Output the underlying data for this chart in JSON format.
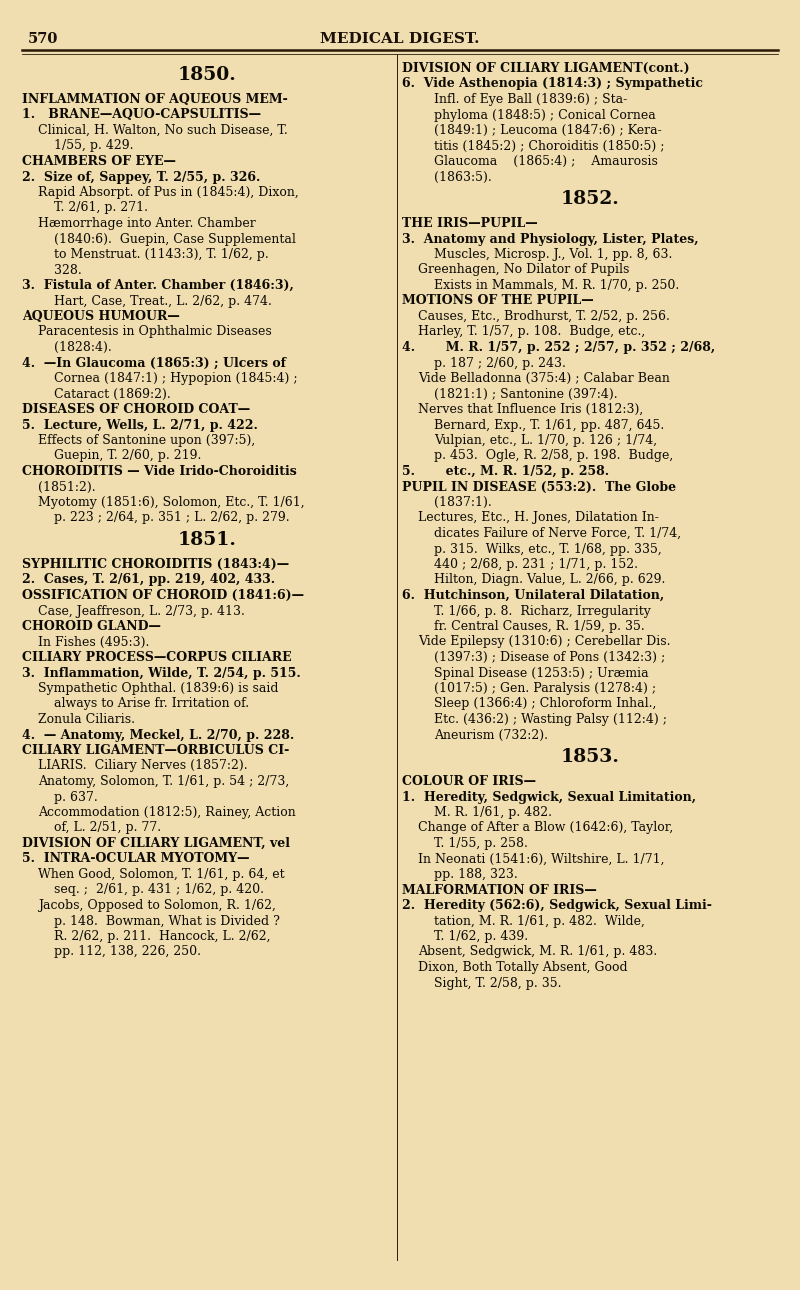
{
  "bg_color": "#f0deb0",
  "page_number": "570",
  "header_title": "MEDICAL DIGEST.",
  "figsize": [
    8.0,
    12.9
  ],
  "dpi": 100,
  "left_lines": [
    {
      "indent": 0,
      "bold": true,
      "center": true,
      "text": "1850."
    },
    {
      "indent": 0,
      "bold": true,
      "center": false,
      "text": "INFLAMMATION OF AQUEOUS MEM-"
    },
    {
      "indent": 0,
      "bold": true,
      "center": false,
      "text": "1.   BRANE—AQUO-CAPSULITIS—"
    },
    {
      "indent": 1,
      "bold": false,
      "center": false,
      "text": "Clinical, H. Walton, No such Disease, T."
    },
    {
      "indent": 2,
      "bold": false,
      "center": false,
      "text": "1/55, p. 429."
    },
    {
      "indent": 0,
      "bold": true,
      "center": false,
      "text": "CHAMBERS OF EYE—"
    },
    {
      "indent": 0,
      "bold": true,
      "center": false,
      "text": "2.  Size of, Sappey, T. 2/55, p. 326."
    },
    {
      "indent": 1,
      "bold": false,
      "center": false,
      "text": "Rapid Absorpt. of Pus in (1845:4), Dixon,"
    },
    {
      "indent": 2,
      "bold": false,
      "center": false,
      "text": "T. 2/61, p. 271."
    },
    {
      "indent": 1,
      "bold": false,
      "center": false,
      "text": "Hæmorrhage into Anter. Chamber"
    },
    {
      "indent": 2,
      "bold": false,
      "center": false,
      "text": "(1840:6).  Guepin, Case Supplemental"
    },
    {
      "indent": 2,
      "bold": false,
      "center": false,
      "text": "to Menstruat. (1143:3), T. 1/62, p."
    },
    {
      "indent": 2,
      "bold": false,
      "center": false,
      "text": "328."
    },
    {
      "indent": 0,
      "bold": true,
      "center": false,
      "text": "3.  Fistula of Anter. Chamber (1846:3),"
    },
    {
      "indent": 2,
      "bold": false,
      "center": false,
      "text": "Hart, Case, Treat., L. 2/62, p. 474."
    },
    {
      "indent": 0,
      "bold": true,
      "center": false,
      "text": "AQUEOUS HUMOUR—"
    },
    {
      "indent": 1,
      "bold": false,
      "center": false,
      "text": "Paracentesis in Ophthalmic Diseases"
    },
    {
      "indent": 2,
      "bold": false,
      "center": false,
      "text": "(1828:4)."
    },
    {
      "indent": 0,
      "bold": true,
      "center": false,
      "text": "4.  —In Glaucoma (1865:3) ; Ulcers of"
    },
    {
      "indent": 2,
      "bold": false,
      "center": false,
      "text": "Cornea (1847:1) ; Hypopion (1845:4) ;"
    },
    {
      "indent": 2,
      "bold": false,
      "center": false,
      "text": "Cataract (1869:2)."
    },
    {
      "indent": 0,
      "bold": true,
      "center": false,
      "text": "DISEASES OF CHOROID COAT—"
    },
    {
      "indent": 0,
      "bold": true,
      "center": false,
      "text": "5.  Lecture, Wells, L. 2/71, p. 422."
    },
    {
      "indent": 1,
      "bold": false,
      "center": false,
      "text": "Effects of Santonine upon (397:5),"
    },
    {
      "indent": 2,
      "bold": false,
      "center": false,
      "text": "Guepin, T. 2/60, p. 219."
    },
    {
      "indent": 0,
      "bold": true,
      "center": false,
      "text": "CHOROIDITIS — Vide Irido-Choroiditis"
    },
    {
      "indent": 1,
      "bold": false,
      "center": false,
      "text": "(1851:2)."
    },
    {
      "indent": 1,
      "bold": false,
      "center": false,
      "text": "Myotomy (1851:6), Solomon, Etc., T. 1/61,"
    },
    {
      "indent": 2,
      "bold": false,
      "center": false,
      "text": "p. 223 ; 2/64, p. 351 ; L. 2/62, p. 279."
    },
    {
      "indent": 0,
      "bold": true,
      "center": true,
      "text": "1851."
    },
    {
      "indent": 0,
      "bold": true,
      "center": false,
      "text": "SYPHILITIC CHOROIDITIS (1843:4)—"
    },
    {
      "indent": 0,
      "bold": true,
      "center": false,
      "text": "2.  Cases, T. 2/61, pp. 219, 402, 433."
    },
    {
      "indent": 0,
      "bold": true,
      "center": false,
      "text": "OSSIFICATION OF CHOROID (1841:6)—"
    },
    {
      "indent": 1,
      "bold": false,
      "center": false,
      "text": "Case, Jeaffreson, L. 2/73, p. 413."
    },
    {
      "indent": 0,
      "bold": true,
      "center": false,
      "text": "CHOROID GLAND—"
    },
    {
      "indent": 1,
      "bold": false,
      "center": false,
      "text": "In Fishes (495:3)."
    },
    {
      "indent": 0,
      "bold": true,
      "center": false,
      "text": "CILIARY PROCESS—CORPUS CILIARE"
    },
    {
      "indent": 0,
      "bold": true,
      "center": false,
      "text": "3.  Inflammation, Wilde, T. 2/54, p. 515."
    },
    {
      "indent": 1,
      "bold": false,
      "center": false,
      "text": "Sympathetic Ophthal. (1839:6) is said"
    },
    {
      "indent": 2,
      "bold": false,
      "center": false,
      "text": "always to Arise fr. Irritation of."
    },
    {
      "indent": 1,
      "bold": false,
      "center": false,
      "text": "Zonula Ciliaris."
    },
    {
      "indent": 0,
      "bold": true,
      "center": false,
      "text": "4.  — Anatomy, Meckel, L. 2/70, p. 228."
    },
    {
      "indent": 0,
      "bold": true,
      "center": false,
      "text": "CILIARY LIGAMENT—ORBICULUS CI-"
    },
    {
      "indent": 1,
      "bold": false,
      "center": false,
      "text": "LIARIS.  Ciliary Nerves (1857:2)."
    },
    {
      "indent": 1,
      "bold": false,
      "center": false,
      "text": "Anatomy, Solomon, T. 1/61, p. 54 ; 2/73,"
    },
    {
      "indent": 2,
      "bold": false,
      "center": false,
      "text": "p. 637."
    },
    {
      "indent": 1,
      "bold": false,
      "center": false,
      "text": "Accommodation (1812:5), Rainey, Action"
    },
    {
      "indent": 2,
      "bold": false,
      "center": false,
      "text": "of, L. 2/51, p. 77."
    },
    {
      "indent": 0,
      "bold": true,
      "center": false,
      "text": "DIVISION OF CILIARY LIGAMENT, vel"
    },
    {
      "indent": 0,
      "bold": true,
      "center": false,
      "text": "5.  INTRA-OCULAR MYOTOMY—"
    },
    {
      "indent": 1,
      "bold": false,
      "center": false,
      "text": "When Good, Solomon, T. 1/61, p. 64, et"
    },
    {
      "indent": 2,
      "bold": false,
      "center": false,
      "text": "seq. ;  2/61, p. 431 ; 1/62, p. 420."
    },
    {
      "indent": 1,
      "bold": false,
      "center": false,
      "text": "Jacobs, Opposed to Solomon, R. 1/62,"
    },
    {
      "indent": 2,
      "bold": false,
      "center": false,
      "text": "p. 148.  Bowman, What is Divided ?"
    },
    {
      "indent": 2,
      "bold": false,
      "center": false,
      "text": "R. 2/62, p. 211.  Hancock, L. 2/62,"
    },
    {
      "indent": 2,
      "bold": false,
      "center": false,
      "text": "pp. 112, 138, 226, 250."
    }
  ],
  "right_lines": [
    {
      "indent": 0,
      "bold": true,
      "center": false,
      "text": "DIVISION OF CILIARY LIGAMENT(cont.)"
    },
    {
      "indent": 0,
      "bold": true,
      "center": false,
      "text": "6.  Vide Asthenopia (1814:3) ; Sympathetic"
    },
    {
      "indent": 2,
      "bold": false,
      "center": false,
      "text": "Infl. of Eye Ball (1839:6) ; Sta-"
    },
    {
      "indent": 2,
      "bold": false,
      "center": false,
      "text": "phyloma (1848:5) ; Conical Cornea"
    },
    {
      "indent": 2,
      "bold": false,
      "center": false,
      "text": "(1849:1) ; Leucoma (1847:6) ; Kera-"
    },
    {
      "indent": 2,
      "bold": false,
      "center": false,
      "text": "titis (1845:2) ; Choroiditis (1850:5) ;"
    },
    {
      "indent": 2,
      "bold": false,
      "center": false,
      "text": "Glaucoma    (1865:4) ;    Amaurosis"
    },
    {
      "indent": 2,
      "bold": false,
      "center": false,
      "text": "(1863:5)."
    },
    {
      "indent": 0,
      "bold": true,
      "center": true,
      "text": "1852."
    },
    {
      "indent": 0,
      "bold": true,
      "center": false,
      "text": "THE IRIS—PUPIL—"
    },
    {
      "indent": 0,
      "bold": true,
      "center": false,
      "text": "3.  Anatomy and Physiology, Lister, Plates,"
    },
    {
      "indent": 2,
      "bold": false,
      "center": false,
      "text": "Muscles, Microsp. J., Vol. 1, pp. 8, 63."
    },
    {
      "indent": 1,
      "bold": false,
      "center": false,
      "text": "Greenhagen, No Dilator of Pupils"
    },
    {
      "indent": 2,
      "bold": false,
      "center": false,
      "text": "Exists in Mammals, M. R. 1/70, p. 250."
    },
    {
      "indent": 0,
      "bold": true,
      "center": false,
      "text": "MOTIONS OF THE PUPIL—"
    },
    {
      "indent": 1,
      "bold": false,
      "center": false,
      "text": "Causes, Etc., Brodhurst, T. 2/52, p. 256."
    },
    {
      "indent": 1,
      "bold": false,
      "center": false,
      "text": "Harley, T. 1/57, p. 108.  Budge, etc.,"
    },
    {
      "indent": 0,
      "bold": true,
      "center": false,
      "text": "4.       M. R. 1/57, p. 252 ; 2/57, p. 352 ; 2/68,"
    },
    {
      "indent": 2,
      "bold": false,
      "center": false,
      "text": "p. 187 ; 2/60, p. 243."
    },
    {
      "indent": 1,
      "bold": false,
      "center": false,
      "text": "Vide Belladonna (375:4) ; Calabar Bean"
    },
    {
      "indent": 2,
      "bold": false,
      "center": false,
      "text": "(1821:1) ; Santonine (397:4)."
    },
    {
      "indent": 1,
      "bold": false,
      "center": false,
      "text": "Nerves that Influence Iris (1812:3),"
    },
    {
      "indent": 2,
      "bold": false,
      "center": false,
      "text": "Bernard, Exp., T. 1/61, pp. 487, 645."
    },
    {
      "indent": 2,
      "bold": false,
      "center": false,
      "text": "Vulpian, etc., L. 1/70, p. 126 ; 1/74,"
    },
    {
      "indent": 2,
      "bold": false,
      "center": false,
      "text": "p. 453.  Ogle, R. 2/58, p. 198.  Budge,"
    },
    {
      "indent": 0,
      "bold": true,
      "center": false,
      "text": "5.       etc., M. R. 1/52, p. 258."
    },
    {
      "indent": 0,
      "bold": true,
      "center": false,
      "text": "PUPIL IN DISEASE (553:2).  The Globe"
    },
    {
      "indent": 2,
      "bold": false,
      "center": false,
      "text": "(1837:1)."
    },
    {
      "indent": 1,
      "bold": false,
      "center": false,
      "text": "Lectures, Etc., H. Jones, Dilatation In-"
    },
    {
      "indent": 2,
      "bold": false,
      "center": false,
      "text": "dicates Failure of Nerve Force, T. 1/74,"
    },
    {
      "indent": 2,
      "bold": false,
      "center": false,
      "text": "p. 315.  Wilks, etc., T. 1/68, pp. 335,"
    },
    {
      "indent": 2,
      "bold": false,
      "center": false,
      "text": "440 ; 2/68, p. 231 ; 1/71, p. 152."
    },
    {
      "indent": 2,
      "bold": false,
      "center": false,
      "text": "Hilton, Diagn. Value, L. 2/66, p. 629."
    },
    {
      "indent": 0,
      "bold": true,
      "center": false,
      "text": "6.  Hutchinson, Unilateral Dilatation,"
    },
    {
      "indent": 2,
      "bold": false,
      "center": false,
      "text": "T. 1/66, p. 8.  Richarz, Irregularity"
    },
    {
      "indent": 2,
      "bold": false,
      "center": false,
      "text": "fr. Central Causes, R. 1/59, p. 35."
    },
    {
      "indent": 1,
      "bold": false,
      "center": false,
      "text": "Vide Epilepsy (1310:6) ; Cerebellar Dis."
    },
    {
      "indent": 2,
      "bold": false,
      "center": false,
      "text": "(1397:3) ; Disease of Pons (1342:3) ;"
    },
    {
      "indent": 2,
      "bold": false,
      "center": false,
      "text": "Spinal Disease (1253:5) ; Uræmia"
    },
    {
      "indent": 2,
      "bold": false,
      "center": false,
      "text": "(1017:5) ; Gen. Paralysis (1278:4) ;"
    },
    {
      "indent": 2,
      "bold": false,
      "center": false,
      "text": "Sleep (1366:4) ; Chloroform Inhal.,"
    },
    {
      "indent": 2,
      "bold": false,
      "center": false,
      "text": "Etc. (436:2) ; Wasting Palsy (112:4) ;"
    },
    {
      "indent": 2,
      "bold": false,
      "center": false,
      "text": "Aneurism (732:2)."
    },
    {
      "indent": 0,
      "bold": true,
      "center": true,
      "text": "1853."
    },
    {
      "indent": 0,
      "bold": true,
      "center": false,
      "text": "COLOUR OF IRIS—"
    },
    {
      "indent": 0,
      "bold": true,
      "center": false,
      "text": "1.  Heredity, Sedgwick, Sexual Limitation,"
    },
    {
      "indent": 2,
      "bold": false,
      "center": false,
      "text": "M. R. 1/61, p. 482."
    },
    {
      "indent": 1,
      "bold": false,
      "center": false,
      "text": "Change of After a Blow (1642:6), Taylor,"
    },
    {
      "indent": 2,
      "bold": false,
      "center": false,
      "text": "T. 1/55, p. 258."
    },
    {
      "indent": 1,
      "bold": false,
      "center": false,
      "text": "In Neonati (1541:6), Wiltshire, L. 1/71,"
    },
    {
      "indent": 2,
      "bold": false,
      "center": false,
      "text": "pp. 188, 323."
    },
    {
      "indent": 0,
      "bold": true,
      "center": false,
      "text": "MALFORMATION OF IRIS—"
    },
    {
      "indent": 0,
      "bold": true,
      "center": false,
      "text": "2.  Heredity (562:6), Sedgwick, Sexual Limi-"
    },
    {
      "indent": 2,
      "bold": false,
      "center": false,
      "text": "tation, M. R. 1/61, p. 482.  Wilde,"
    },
    {
      "indent": 2,
      "bold": false,
      "center": false,
      "text": "T. 1/62, p. 439."
    },
    {
      "indent": 1,
      "bold": false,
      "center": false,
      "text": "Absent, Sedgwick, M. R. 1/61, p. 483."
    },
    {
      "indent": 1,
      "bold": false,
      "center": false,
      "text": "Dixon, Both Totally Absent, Good"
    },
    {
      "indent": 2,
      "bold": false,
      "center": false,
      "text": "Sight, T. 2/58, p. 35."
    }
  ]
}
